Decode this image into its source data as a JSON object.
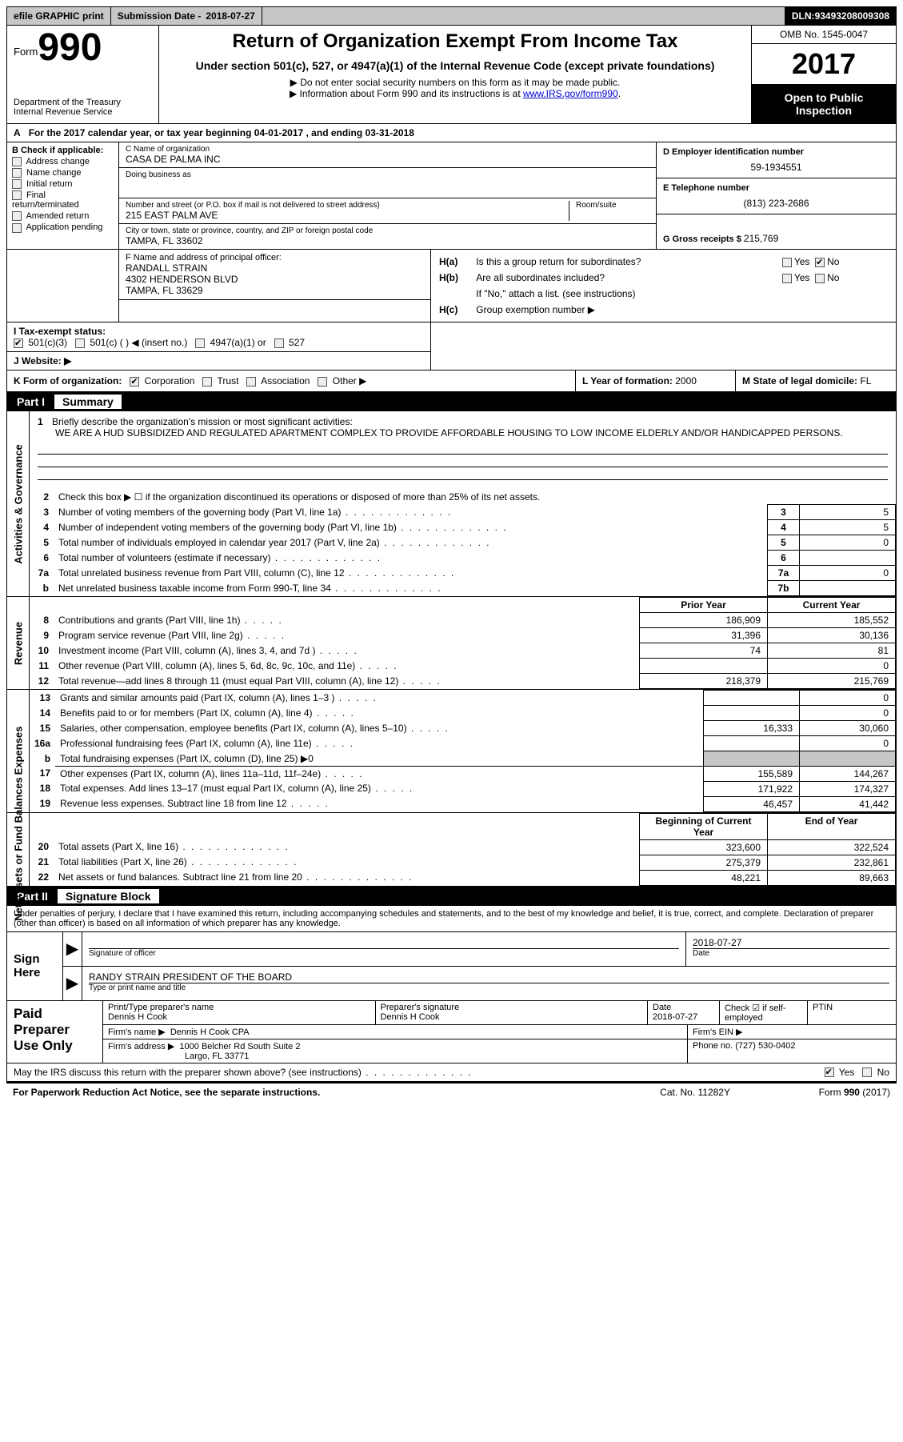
{
  "topbar": {
    "efile": "efile GRAPHIC print",
    "submission_label": "Submission Date - ",
    "submission_date": "2018-07-27",
    "dln_label": "DLN: ",
    "dln": "93493208009308"
  },
  "header": {
    "form_word": "Form",
    "form_num": "990",
    "dept": "Department of the Treasury",
    "irs": "Internal Revenue Service",
    "title": "Return of Organization Exempt From Income Tax",
    "subtitle": "Under section 501(c), 527, or 4947(a)(1) of the Internal Revenue Code (except private foundations)",
    "arrow1": "▶ Do not enter social security numbers on this form as it may be made public.",
    "arrow2_pre": "▶ Information about Form 990 and its instructions is at ",
    "arrow2_link": "www.IRS.gov/form990",
    "omb": "OMB No. 1545-0047",
    "year": "2017",
    "open": "Open to Public Inspection"
  },
  "line_a": {
    "prefix": "A",
    "text": "For the 2017 calendar year, or tax year beginning 04-01-2017   , and ending 03-31-2018"
  },
  "col_b": {
    "header": "B Check if applicable:",
    "items": [
      "Address change",
      "Name change",
      "Initial return",
      "Final return/terminated",
      "Amended return",
      "Application pending"
    ]
  },
  "col_c": {
    "name_label": "C Name of organization",
    "name": "CASA DE PALMA INC",
    "dba_label": "Doing business as",
    "dba": "",
    "street_label": "Number and street (or P.O. box if mail is not delivered to street address)",
    "room_label": "Room/suite",
    "street": "215 EAST PALM AVE",
    "city_label": "City or town, state or province, country, and ZIP or foreign postal code",
    "city": "TAMPA, FL  33602"
  },
  "col_d": {
    "ein_label": "D Employer identification number",
    "ein": "59-1934551",
    "phone_label": "E Telephone number",
    "phone": "(813) 223-2686",
    "gross_label": "G Gross receipts $ ",
    "gross": "215,769"
  },
  "col_f": {
    "label": "F Name and address of principal officer:",
    "name": "RANDALL STRAIN",
    "addr1": "4302 HENDERSON BLVD",
    "addr2": "TAMPA, FL  33629"
  },
  "tax_exempt": {
    "label": "I  Tax-exempt status:",
    "opt1": "501(c)(3)",
    "opt2": "501(c) (  ) ◀ (insert no.)",
    "opt3": "4947(a)(1) or",
    "opt4": "527"
  },
  "website": {
    "label": "J  Website: ▶"
  },
  "col_h": {
    "ha_label": "H(a)",
    "ha_text": "Is this a group return for subordinates?",
    "hb_label": "H(b)",
    "hb_text": "Are all subordinates included?",
    "hb_note": "If \"No,\" attach a list. (see instructions)",
    "hc_label": "H(c)",
    "hc_text": "Group exemption number ▶",
    "yes": "Yes",
    "no": "No"
  },
  "row_k": {
    "k_label": "K Form of organization:",
    "k_opts": [
      "Corporation",
      "Trust",
      "Association",
      "Other ▶"
    ],
    "l_label": "L Year of formation: ",
    "l_val": "2000",
    "m_label": "M State of legal domicile: ",
    "m_val": "FL"
  },
  "part1": {
    "label": "Part I",
    "title": "Summary"
  },
  "mission": {
    "num": "1",
    "prompt": "Briefly describe the organization's mission or most significant activities:",
    "text": "WE ARE A HUD SUBSIDIZED AND REGULATED APARTMENT COMPLEX TO PROVIDE AFFORDABLE HOUSING TO LOW INCOME ELDERLY AND/OR HANDICAPPED PERSONS."
  },
  "governance": {
    "line2": "Check this box ▶ ☐  if the organization discontinued its operations or disposed of more than 25% of its net assets.",
    "rows": [
      {
        "n": "3",
        "desc": "Number of voting members of the governing body (Part VI, line 1a)",
        "box": "3",
        "val": "5"
      },
      {
        "n": "4",
        "desc": "Number of independent voting members of the governing body (Part VI, line 1b)",
        "box": "4",
        "val": "5"
      },
      {
        "n": "5",
        "desc": "Total number of individuals employed in calendar year 2017 (Part V, line 2a)",
        "box": "5",
        "val": "0"
      },
      {
        "n": "6",
        "desc": "Total number of volunteers (estimate if necessary)",
        "box": "6",
        "val": ""
      },
      {
        "n": "7a",
        "desc": "Total unrelated business revenue from Part VIII, column (C), line 12",
        "box": "7a",
        "val": "0"
      },
      {
        "n": "b",
        "desc": "Net unrelated business taxable income from Form 990-T, line 34",
        "box": "7b",
        "val": ""
      }
    ]
  },
  "prior_current": {
    "prior": "Prior Year",
    "current": "Current Year"
  },
  "revenue": {
    "rows": [
      {
        "n": "8",
        "desc": "Contributions and grants (Part VIII, line 1h)",
        "prior": "186,909",
        "curr": "185,552"
      },
      {
        "n": "9",
        "desc": "Program service revenue (Part VIII, line 2g)",
        "prior": "31,396",
        "curr": "30,136"
      },
      {
        "n": "10",
        "desc": "Investment income (Part VIII, column (A), lines 3, 4, and 7d )",
        "prior": "74",
        "curr": "81"
      },
      {
        "n": "11",
        "desc": "Other revenue (Part VIII, column (A), lines 5, 6d, 8c, 9c, 10c, and 11e)",
        "prior": "",
        "curr": "0"
      },
      {
        "n": "12",
        "desc": "Total revenue—add lines 8 through 11 (must equal Part VIII, column (A), line 12)",
        "prior": "218,379",
        "curr": "215,769"
      }
    ]
  },
  "expenses": {
    "rows": [
      {
        "n": "13",
        "desc": "Grants and similar amounts paid (Part IX, column (A), lines 1–3 )",
        "prior": "",
        "curr": "0"
      },
      {
        "n": "14",
        "desc": "Benefits paid to or for members (Part IX, column (A), line 4)",
        "prior": "",
        "curr": "0"
      },
      {
        "n": "15",
        "desc": "Salaries, other compensation, employee benefits (Part IX, column (A), lines 5–10)",
        "prior": "16,333",
        "curr": "30,060"
      },
      {
        "n": "16a",
        "desc": "Professional fundraising fees (Part IX, column (A), line 11e)",
        "prior": "",
        "curr": "0"
      },
      {
        "n": "b",
        "desc": "Total fundraising expenses (Part IX, column (D), line 25) ▶0",
        "shaded": true
      },
      {
        "n": "17",
        "desc": "Other expenses (Part IX, column (A), lines 11a–11d, 11f–24e)",
        "prior": "155,589",
        "curr": "144,267"
      },
      {
        "n": "18",
        "desc": "Total expenses. Add lines 13–17 (must equal Part IX, column (A), line 25)",
        "prior": "171,922",
        "curr": "174,327"
      },
      {
        "n": "19",
        "desc": "Revenue less expenses. Subtract line 18 from line 12",
        "prior": "46,457",
        "curr": "41,442"
      }
    ]
  },
  "begin_end": {
    "begin": "Beginning of Current Year",
    "end": "End of Year"
  },
  "netassets": {
    "rows": [
      {
        "n": "20",
        "desc": "Total assets (Part X, line 16)",
        "prior": "323,600",
        "curr": "322,524"
      },
      {
        "n": "21",
        "desc": "Total liabilities (Part X, line 26)",
        "prior": "275,379",
        "curr": "232,861"
      },
      {
        "n": "22",
        "desc": "Net assets or fund balances. Subtract line 21 from line 20",
        "prior": "48,221",
        "curr": "89,663"
      }
    ]
  },
  "part2": {
    "label": "Part II",
    "title": "Signature Block"
  },
  "sig_text": "Under penalties of perjury, I declare that I have examined this return, including accompanying schedules and statements, and to the best of my knowledge and belief, it is true, correct, and complete. Declaration of preparer (other than officer) is based on all information of which preparer has any knowledge.",
  "sign_here": "Sign Here",
  "sig": {
    "officer_label": "Signature of officer",
    "date_label": "Date",
    "date_val": "2018-07-27",
    "name_val": "RANDY STRAIN  PRESIDENT OF THE BOARD",
    "name_label": "Type or print name and title"
  },
  "prep": {
    "title": "Paid Preparer Use Only",
    "print_label": "Print/Type preparer's name",
    "print_val": "Dennis H Cook",
    "sig_label": "Preparer's signature",
    "sig_val": "Dennis H Cook",
    "date_label": "Date",
    "date_val": "2018-07-27",
    "check_label": "Check ☑ if self-employed",
    "ptin_label": "PTIN",
    "firm_name_label": "Firm's name    ▶",
    "firm_name": "Dennis H Cook CPA",
    "firm_ein_label": "Firm's EIN ▶",
    "firm_addr_label": "Firm's address ▶",
    "firm_addr1": "1000 Belcher Rd South Suite 2",
    "firm_addr2": "Largo, FL  33771",
    "phone_label": "Phone no. ",
    "phone": "(727) 530-0402"
  },
  "discuss": {
    "text": "May the IRS discuss this return with the preparer shown above? (see instructions)",
    "yes": "Yes",
    "no": "No"
  },
  "footer": {
    "left": "For Paperwork Reduction Act Notice, see the separate instructions.",
    "center": "Cat. No. 11282Y",
    "right": "Form 990 (2017)"
  },
  "sidelabels": {
    "gov": "Activities & Governance",
    "rev": "Revenue",
    "exp": "Expenses",
    "net": "Net Assets or Fund Balances"
  }
}
